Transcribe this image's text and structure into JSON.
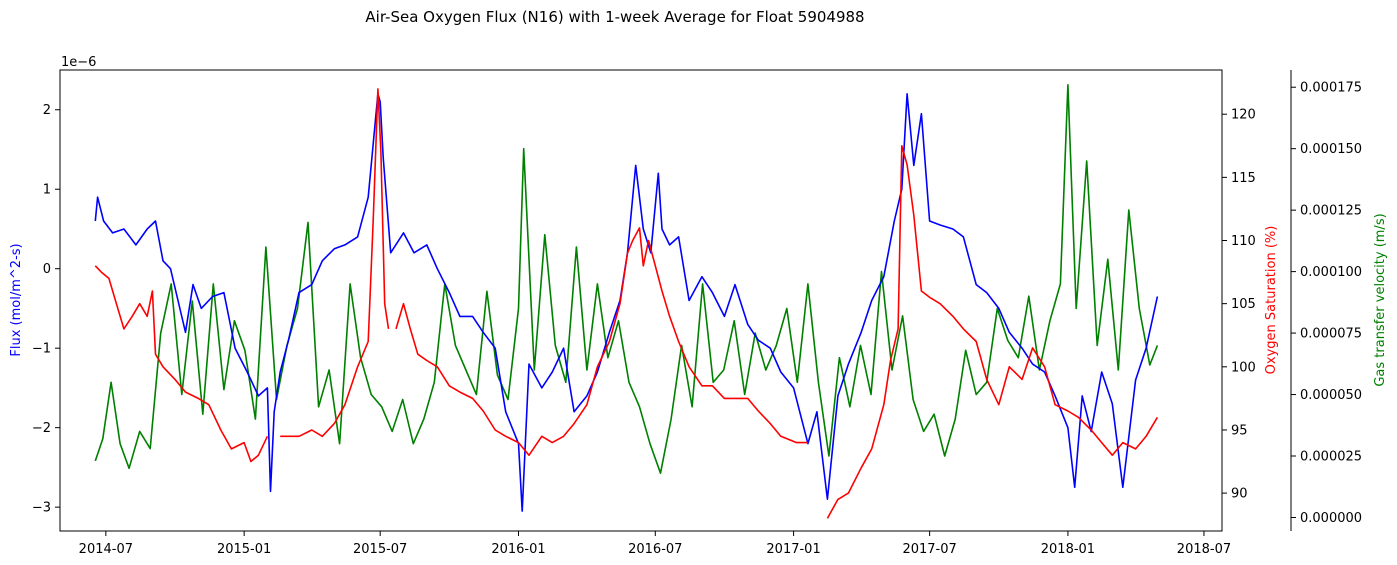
{
  "chart_data": {
    "type": "line",
    "title": "Air-Sea Oxygen Flux (N16) with 1-week Average for Float 5904988",
    "x_ticks": [
      "2014-07",
      "2015-01",
      "2015-07",
      "2016-01",
      "2016-07",
      "2017-01",
      "2017-07",
      "2018-01",
      "2018-07"
    ],
    "x_range": [
      "2014-05-01",
      "2018-07-25"
    ],
    "axes": {
      "left": {
        "label": "Flux (mol/m^2-s)",
        "offset_text": "1e−6",
        "color": "#0000ff",
        "range": [
          -3.3,
          2.5
        ],
        "ticks": [
          2,
          1,
          0,
          -1,
          -2,
          -3
        ],
        "tick_labels": [
          "2",
          "1",
          "0",
          "−1",
          "−2",
          "−3"
        ]
      },
      "right": {
        "label": "Oxygen Saturation (%)",
        "color": "#ff0000",
        "range": [
          87,
          123.5
        ],
        "ticks": [
          120,
          115,
          110,
          105,
          100,
          95,
          90
        ],
        "tick_labels": [
          "120",
          "115",
          "110",
          "105",
          "100",
          "95",
          "90"
        ]
      },
      "right2": {
        "label": "Gas transfer velocity (m/s)",
        "color": "#008000",
        "range": [
          -5.5e-06,
          0.000182
        ],
        "ticks": [
          0.000175,
          0.00015,
          0.000125,
          0.0001,
          7.5e-05,
          5e-05,
          2.5e-05,
          0
        ],
        "tick_labels": [
          "0.000175",
          "0.000150",
          "0.000125",
          "0.000100",
          "0.000075",
          "0.000050",
          "0.000025",
          "0.000000"
        ]
      }
    },
    "series": [
      {
        "axis": "right2",
        "color": "#008000",
        "x": [
          "2014-06-17",
          "2014-06-27",
          "2014-07-08",
          "2014-07-20",
          "2014-08-01",
          "2014-08-15",
          "2014-08-29",
          "2014-09-12",
          "2014-09-26",
          "2014-10-10",
          "2014-10-24",
          "2014-11-07",
          "2014-11-21",
          "2014-12-05",
          "2014-12-19",
          "2015-01-02",
          "2015-01-16",
          "2015-01-30",
          "2015-02-13",
          "2015-02-27",
          "2015-03-13",
          "2015-03-27",
          "2015-04-10",
          "2015-04-24",
          "2015-05-08",
          "2015-05-22",
          "2015-06-05",
          "2015-06-19",
          "2015-07-03",
          "2015-07-17",
          "2015-07-31",
          "2015-08-14",
          "2015-08-28",
          "2015-09-11",
          "2015-09-25",
          "2015-10-09",
          "2015-10-23",
          "2015-11-06",
          "2015-11-20",
          "2015-12-04",
          "2015-12-18",
          "2016-01-01",
          "2016-01-08",
          "2016-01-22",
          "2016-02-05",
          "2016-02-19",
          "2016-03-04",
          "2016-03-18",
          "2016-04-01",
          "2016-04-15",
          "2016-04-29",
          "2016-05-13",
          "2016-05-27",
          "2016-06-10",
          "2016-06-24",
          "2016-07-08",
          "2016-07-22",
          "2016-08-05",
          "2016-08-19",
          "2016-09-02",
          "2016-09-16",
          "2016-09-30",
          "2016-10-14",
          "2016-10-28",
          "2016-11-11",
          "2016-11-25",
          "2016-12-09",
          "2016-12-23",
          "2017-01-06",
          "2017-01-20",
          "2017-02-03",
          "2017-02-17",
          "2017-03-03",
          "2017-03-17",
          "2017-03-31",
          "2017-04-14",
          "2017-04-28",
          "2017-05-12",
          "2017-05-26",
          "2017-06-09",
          "2017-06-23",
          "2017-07-07",
          "2017-07-21",
          "2017-08-04",
          "2017-08-18",
          "2017-09-01",
          "2017-09-15",
          "2017-09-29",
          "2017-10-13",
          "2017-10-27",
          "2017-11-10",
          "2017-11-24",
          "2017-12-08",
          "2017-12-22",
          "2018-01-01",
          "2018-01-12",
          "2018-01-26",
          "2018-02-09",
          "2018-02-23",
          "2018-03-09",
          "2018-03-23",
          "2018-04-06",
          "2018-04-20",
          "2018-04-30"
        ],
        "values": [
          2.3e-05,
          3.2e-05,
          5.5e-05,
          3e-05,
          2e-05,
          3.5e-05,
          2.8e-05,
          7.5e-05,
          9.5e-05,
          5e-05,
          8.8e-05,
          4.2e-05,
          9.5e-05,
          5.2e-05,
          8e-05,
          6.8e-05,
          4e-05,
          0.00011,
          4.8e-05,
          7e-05,
          8.5e-05,
          0.00012,
          4.5e-05,
          6e-05,
          3e-05,
          9.5e-05,
          6.5e-05,
          5e-05,
          4.5e-05,
          3.5e-05,
          4.8e-05,
          3e-05,
          4e-05,
          5.5e-05,
          9.5e-05,
          7e-05,
          6e-05,
          5e-05,
          9.2e-05,
          5.8e-05,
          4.8e-05,
          8.5e-05,
          0.00015,
          6e-05,
          0.000115,
          7e-05,
          5.5e-05,
          0.00011,
          6e-05,
          9.5e-05,
          6.5e-05,
          8e-05,
          5.5e-05,
          4.5e-05,
          3e-05,
          1.8e-05,
          4e-05,
          7e-05,
          4.5e-05,
          9.5e-05,
          5.5e-05,
          6e-05,
          8e-05,
          5e-05,
          7.5e-05,
          6e-05,
          7e-05,
          8.5e-05,
          5.5e-05,
          9.5e-05,
          5.5e-05,
          2.5e-05,
          6.5e-05,
          4.5e-05,
          7e-05,
          5e-05,
          0.0001,
          6e-05,
          8.2e-05,
          4.8e-05,
          3.5e-05,
          4.2e-05,
          2.5e-05,
          4e-05,
          6.8e-05,
          5e-05,
          5.5e-05,
          8.5e-05,
          7.2e-05,
          6.5e-05,
          9e-05,
          6e-05,
          8e-05,
          9.5e-05,
          0.000176,
          8.5e-05,
          0.000145,
          7e-05,
          0.000105,
          6e-05,
          0.000125,
          8.5e-05,
          6.2e-05,
          7e-05
        ]
      },
      {
        "axis": "left",
        "color": "#0000ff",
        "x": [
          "2014-06-17",
          "2014-06-20",
          "2014-06-28",
          "2014-07-10",
          "2014-07-25",
          "2014-08-10",
          "2014-08-25",
          "2014-09-05",
          "2014-09-15",
          "2014-09-25",
          "2014-10-05",
          "2014-10-15",
          "2014-10-25",
          "2014-11-05",
          "2014-11-20",
          "2014-12-05",
          "2014-12-20",
          "2015-01-05",
          "2015-01-20",
          "2015-02-01",
          "2015-02-05",
          "2015-02-10",
          "2015-02-18",
          "2015-03-01",
          "2015-03-15",
          "2015-04-01",
          "2015-04-15",
          "2015-05-01",
          "2015-05-15",
          "2015-06-01",
          "2015-06-15",
          "2015-06-28",
          "2015-07-01",
          "2015-07-05",
          "2015-07-15",
          "2015-08-01",
          "2015-08-15",
          "2015-09-01",
          "2015-09-15",
          "2015-10-01",
          "2015-10-15",
          "2015-11-01",
          "2015-11-15",
          "2015-12-01",
          "2015-12-15",
          "2016-01-01",
          "2016-01-06",
          "2016-01-15",
          "2016-02-01",
          "2016-02-15",
          "2016-03-01",
          "2016-03-15",
          "2016-04-01",
          "2016-04-15",
          "2016-05-01",
          "2016-05-15",
          "2016-05-25",
          "2016-06-05",
          "2016-06-15",
          "2016-06-25",
          "2016-07-05",
          "2016-07-10",
          "2016-07-20",
          "2016-08-01",
          "2016-08-15",
          "2016-09-01",
          "2016-09-15",
          "2016-10-01",
          "2016-10-15",
          "2016-11-01",
          "2016-11-15",
          "2016-12-01",
          "2016-12-15",
          "2017-01-01",
          "2017-01-20",
          "2017-02-01",
          "2017-02-15",
          "2017-03-01",
          "2017-03-15",
          "2017-04-01",
          "2017-04-15",
          "2017-05-01",
          "2017-05-15",
          "2017-05-25",
          "2017-06-01",
          "2017-06-10",
          "2017-06-20",
          "2017-07-01",
          "2017-07-15",
          "2017-08-01",
          "2017-08-15",
          "2017-09-01",
          "2017-09-15",
          "2017-10-01",
          "2017-10-15",
          "2017-11-01",
          "2017-11-15",
          "2017-12-01",
          "2017-12-15",
          "2018-01-01",
          "2018-01-10",
          "2018-01-20",
          "2018-02-01",
          "2018-02-15",
          "2018-03-01",
          "2018-03-15",
          "2018-04-01",
          "2018-04-15",
          "2018-04-30"
        ],
        "values": [
          0.6,
          0.9,
          0.6,
          0.45,
          0.5,
          0.3,
          0.5,
          0.6,
          0.1,
          0.0,
          -0.4,
          -0.8,
          -0.2,
          -0.5,
          -0.35,
          -0.3,
          -1.0,
          -1.3,
          -1.6,
          -1.5,
          -2.8,
          -1.8,
          -1.3,
          -0.9,
          -0.3,
          -0.2,
          0.1,
          0.25,
          0.3,
          0.4,
          0.9,
          2.2,
          2.1,
          1.4,
          0.2,
          0.45,
          0.2,
          0.3,
          0.0,
          -0.3,
          -0.6,
          -0.6,
          -0.8,
          -1.0,
          -1.8,
          -2.2,
          -3.05,
          -1.2,
          -1.5,
          -1.3,
          -1.0,
          -1.8,
          -1.6,
          -1.3,
          -0.8,
          -0.4,
          0.2,
          1.3,
          0.5,
          0.2,
          1.2,
          0.5,
          0.3,
          0.4,
          -0.4,
          -0.1,
          -0.3,
          -0.6,
          -0.2,
          -0.7,
          -0.9,
          -1.0,
          -1.3,
          -1.5,
          -2.2,
          -1.8,
          -2.9,
          -1.6,
          -1.2,
          -0.8,
          -0.4,
          -0.1,
          0.6,
          1.0,
          2.2,
          1.3,
          1.95,
          0.6,
          0.55,
          0.5,
          0.4,
          -0.2,
          -0.3,
          -0.5,
          -0.8,
          -1.0,
          -1.2,
          -1.3,
          -1.6,
          -2.0,
          -2.75,
          -1.6,
          -2.05,
          -1.3,
          -1.7,
          -2.75,
          -1.4,
          -1.0,
          -0.35
        ]
      },
      {
        "axis": "right",
        "color": "#ff0000",
        "x": [
          "2014-06-17",
          "2014-06-25",
          "2014-07-05",
          "2014-07-15",
          "2014-07-25",
          "2014-08-05",
          "2014-08-15",
          "2014-08-25",
          "2014-09-01",
          "2014-09-05",
          "2014-09-15",
          "2014-10-01",
          "2014-10-15",
          "2014-11-01",
          "2014-11-15",
          "2014-12-01",
          "2014-12-15",
          "2015-01-01",
          "2015-01-10",
          "2015-01-20",
          "2015-02-01",
          "2015-02-06",
          "2015-02-18",
          "2015-03-01",
          "2015-03-15",
          "2015-04-01",
          "2015-04-15",
          "2015-05-01",
          "2015-05-15",
          "2015-06-01",
          "2015-06-15",
          "2015-06-22",
          "2015-06-28",
          "2015-07-02",
          "2015-07-07",
          "2015-07-12",
          "2015-07-20",
          "2015-07-22",
          "2015-08-01",
          "2015-08-10",
          "2015-08-20",
          "2015-09-01",
          "2015-09-15",
          "2015-10-01",
          "2015-10-15",
          "2015-11-01",
          "2015-11-15",
          "2015-12-01",
          "2015-12-15",
          "2016-01-01",
          "2016-01-15",
          "2016-02-01",
          "2016-02-15",
          "2016-03-01",
          "2016-03-15",
          "2016-04-01",
          "2016-04-15",
          "2016-05-01",
          "2016-05-15",
          "2016-05-25",
          "2016-06-01",
          "2016-06-10",
          "2016-06-15",
          "2016-06-22",
          "2016-07-01",
          "2016-07-10",
          "2016-07-20",
          "2016-08-01",
          "2016-08-15",
          "2016-09-01",
          "2016-09-15",
          "2016-10-01",
          "2016-10-15",
          "2016-11-01",
          "2016-11-15",
          "2016-12-01",
          "2016-12-15",
          "2017-01-05",
          "2017-01-20",
          "2017-02-05",
          "2017-02-15",
          "2017-03-01",
          "2017-03-15",
          "2017-04-01",
          "2017-04-15",
          "2017-05-01",
          "2017-05-10",
          "2017-05-20",
          "2017-05-25",
          "2017-06-01",
          "2017-06-10",
          "2017-06-20",
          "2017-07-01",
          "2017-07-15",
          "2017-08-01",
          "2017-08-15",
          "2017-09-01",
          "2017-09-15",
          "2017-10-01",
          "2017-10-15",
          "2017-11-01",
          "2017-11-15",
          "2017-12-01",
          "2017-12-15",
          "2018-01-01",
          "2018-01-15",
          "2018-02-01",
          "2018-02-15",
          "2018-03-01",
          "2018-03-15",
          "2018-04-01",
          "2018-04-15",
          "2018-04-30"
        ],
        "values": [
          108,
          107.5,
          107,
          105,
          103,
          104,
          105,
          104,
          106,
          101,
          100,
          99,
          98,
          97.5,
          97,
          95,
          93.5,
          94,
          92.5,
          93,
          94.5,
          null,
          94.5,
          94.5,
          94.5,
          95,
          94.5,
          95.5,
          97,
          100,
          102,
          112,
          122,
          117,
          105,
          103,
          null,
          103,
          105,
          103,
          101,
          100.5,
          100,
          98.5,
          98,
          97.5,
          96.5,
          95,
          94.5,
          94,
          93,
          94.5,
          94,
          94.5,
          95.5,
          97,
          100,
          102,
          105,
          109,
          110,
          111,
          108,
          110,
          108,
          106,
          104,
          102,
          100,
          98.5,
          98.5,
          97.5,
          97.5,
          97.5,
          96.5,
          95.5,
          94.5,
          94,
          94,
          null,
          88,
          89.5,
          90,
          92,
          93.5,
          97,
          100.5,
          103,
          117.5,
          116,
          112,
          106,
          105.5,
          105,
          104,
          103,
          102,
          99,
          97,
          100,
          99,
          101.5,
          100,
          97,
          96.5,
          96,
          95,
          94,
          93,
          94,
          93.5,
          94.5,
          96
        ]
      }
    ]
  }
}
